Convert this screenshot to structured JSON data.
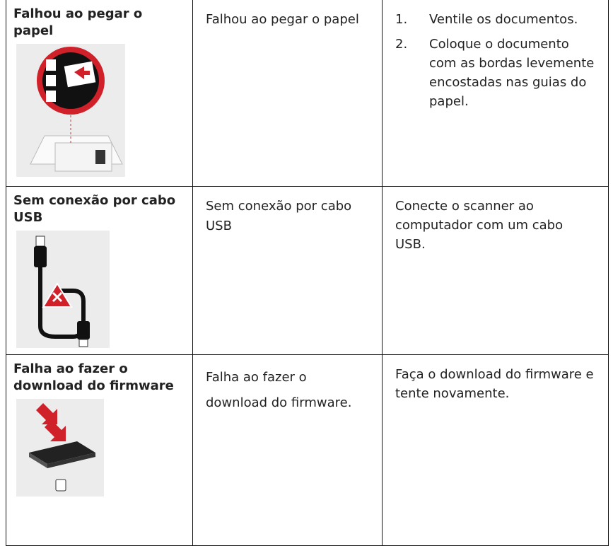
{
  "table": {
    "rows": [
      {
        "error": "Falhou ao pegar o papel",
        "message": "Falhou ao pegar o papel",
        "solution": [
          {
            "marker": "1.",
            "text": "Ventile os documentos."
          },
          {
            "marker": "2.",
            "text": "Coloque o documento com as bordas levemente encostadas nas guias do papel."
          }
        ]
      },
      {
        "error": "Sem conexão por cabo USB",
        "message": "Sem conexão por cabo USB",
        "solution": "Conecte o scanner ao computador com um cabo USB."
      },
      {
        "error": "Falha ao fazer o download do firmware",
        "message": "Falha ao fazer o download do firmware.",
        "solution": "Faça o download do firmware e tente novamente."
      }
    ]
  }
}
